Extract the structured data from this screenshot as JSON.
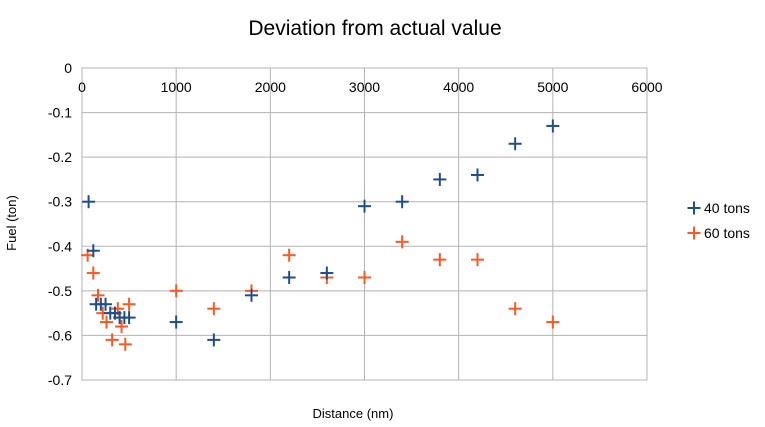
{
  "chart_data": {
    "type": "scatter",
    "title": "Deviation from actual value",
    "xlabel": "Distance (nm)",
    "ylabel": "Fuel (ton)",
    "xlim": [
      0,
      6000
    ],
    "ylim": [
      -0.7,
      0
    ],
    "x_ticks": [
      0,
      1000,
      2000,
      3000,
      4000,
      5000,
      6000
    ],
    "y_ticks": [
      0,
      -0.1,
      -0.2,
      -0.3,
      -0.4,
      -0.5,
      -0.6,
      -0.7
    ],
    "x_tick_labels": [
      "0",
      "1000",
      "2000",
      "3000",
      "4000",
      "5000",
      "6000"
    ],
    "y_tick_labels": [
      "0",
      "-0.1",
      "-0.2",
      "-0.3",
      "-0.4",
      "-0.5",
      "-0.6",
      "-0.7"
    ],
    "grid": true,
    "legend_position": "right",
    "series": [
      {
        "name": "40 tons",
        "color": "#1f4e8c",
        "marker": "plus",
        "points": [
          [
            70,
            -0.3
          ],
          [
            120,
            -0.41
          ],
          [
            150,
            -0.53
          ],
          [
            200,
            -0.53
          ],
          [
            250,
            -0.53
          ],
          [
            300,
            -0.55
          ],
          [
            350,
            -0.55
          ],
          [
            400,
            -0.56
          ],
          [
            450,
            -0.56
          ],
          [
            500,
            -0.56
          ],
          [
            1000,
            -0.57
          ],
          [
            1400,
            -0.61
          ],
          [
            1800,
            -0.51
          ],
          [
            2200,
            -0.47
          ],
          [
            2600,
            -0.46
          ],
          [
            3000,
            -0.31
          ],
          [
            3400,
            -0.3
          ],
          [
            3800,
            -0.25
          ],
          [
            4200,
            -0.24
          ],
          [
            4600,
            -0.17
          ],
          [
            5000,
            -0.13
          ]
        ]
      },
      {
        "name": "60 tons",
        "color": "#ff5722",
        "marker": "plus",
        "points": [
          [
            60,
            -0.42
          ],
          [
            120,
            -0.46
          ],
          [
            170,
            -0.51
          ],
          [
            220,
            -0.55
          ],
          [
            260,
            -0.57
          ],
          [
            320,
            -0.61
          ],
          [
            380,
            -0.54
          ],
          [
            420,
            -0.58
          ],
          [
            460,
            -0.62
          ],
          [
            500,
            -0.53
          ],
          [
            1000,
            -0.5
          ],
          [
            1400,
            -0.54
          ],
          [
            1800,
            -0.5
          ],
          [
            2200,
            -0.42
          ],
          [
            2600,
            -0.47
          ],
          [
            3000,
            -0.47
          ],
          [
            3400,
            -0.39
          ],
          [
            3800,
            -0.43
          ],
          [
            4200,
            -0.43
          ],
          [
            4600,
            -0.54
          ],
          [
            5000,
            -0.57
          ]
        ]
      }
    ]
  }
}
